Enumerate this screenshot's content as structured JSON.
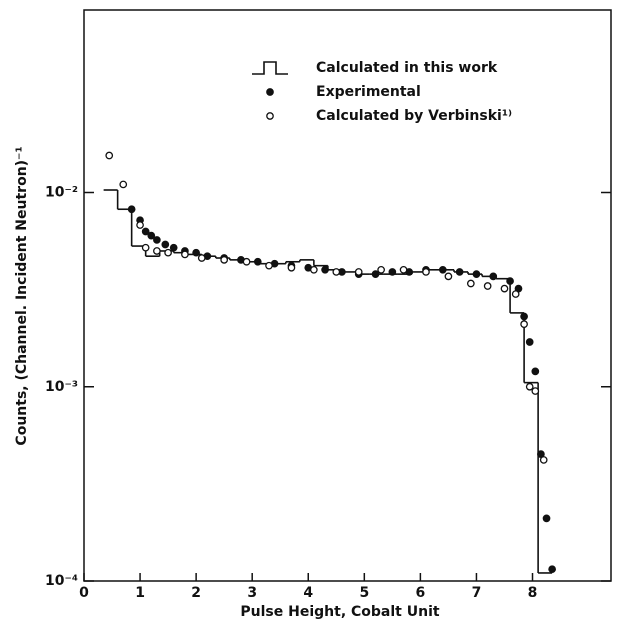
{
  "chart_data": {
    "type": "log-histogram",
    "xlabel": "Pulse Height, Cobalt Unit",
    "ylabel": "Counts, (Channel. Incident Neutron)⁻¹",
    "xlim": [
      0,
      9.4
    ],
    "ylim": [
      0.0001,
      0.087
    ],
    "log_y": true,
    "xticks": [
      0,
      1,
      2,
      3,
      4,
      5,
      6,
      7,
      8
    ],
    "yticks": [
      {
        "value": 0.0001,
        "label": "10⁻⁴"
      },
      {
        "value": 0.001,
        "label": "10⁻³"
      },
      {
        "value": 0.01,
        "label": "10⁻²"
      }
    ],
    "legend": "upper center",
    "series": [
      {
        "name": "Calculated in this work",
        "type": "step",
        "color": "#111",
        "bins": [
          0.35,
          0.6,
          0.85,
          1.1,
          1.35,
          1.6,
          1.85,
          2.1,
          2.35,
          2.6,
          2.85,
          3.1,
          3.35,
          3.6,
          3.85,
          4.1,
          4.35,
          4.6,
          4.85,
          5.1,
          5.35,
          5.6,
          5.85,
          6.1,
          6.35,
          6.6,
          6.85,
          7.1,
          7.35,
          7.6,
          7.85,
          8.1,
          8.35
        ],
        "values": [
          0.0103,
          0.0082,
          0.0053,
          0.0047,
          0.005,
          0.0049,
          0.0048,
          0.0047,
          0.0046,
          0.0045,
          0.0044,
          0.0043,
          0.0043,
          0.0044,
          0.0045,
          0.0042,
          0.004,
          0.0039,
          0.0038,
          0.0038,
          0.0038,
          0.0038,
          0.0039,
          0.004,
          0.004,
          0.0039,
          0.0038,
          0.0037,
          0.0036,
          0.0024,
          0.00105,
          0.00011
        ]
      },
      {
        "name": "Experimental",
        "type": "scatter",
        "marker": "filled",
        "color": "#111",
        "x": [
          0.85,
          1.0,
          1.1,
          1.2,
          1.3,
          1.45,
          1.6,
          1.8,
          2.0,
          2.2,
          2.5,
          2.8,
          3.1,
          3.4,
          3.7,
          4.0,
          4.3,
          4.6,
          4.9,
          5.2,
          5.5,
          5.8,
          6.1,
          6.4,
          6.7,
          7.0,
          7.3,
          7.6,
          7.75,
          7.85,
          7.95,
          8.05,
          8.15,
          8.25,
          8.35
        ],
        "values": [
          0.0082,
          0.0072,
          0.0063,
          0.006,
          0.0057,
          0.0054,
          0.0052,
          0.005,
          0.0049,
          0.0047,
          0.0046,
          0.0045,
          0.0044,
          0.0043,
          0.0042,
          0.0041,
          0.004,
          0.0039,
          0.0038,
          0.0038,
          0.0039,
          0.0039,
          0.004,
          0.004,
          0.0039,
          0.0038,
          0.0037,
          0.0035,
          0.0032,
          0.0023,
          0.0017,
          0.0012,
          0.00045,
          0.00021,
          0.000115
        ]
      },
      {
        "name": "Calculated by Verbinski¹⁾",
        "type": "scatter",
        "marker": "open",
        "color": "#111",
        "x": [
          0.45,
          0.7,
          1.0,
          1.1,
          1.3,
          1.5,
          1.8,
          2.1,
          2.5,
          2.9,
          3.3,
          3.7,
          4.1,
          4.5,
          4.9,
          5.3,
          5.7,
          6.1,
          6.5,
          6.9,
          7.2,
          7.5,
          7.7,
          7.85,
          7.95,
          8.05,
          8.2
        ],
        "values": [
          0.0155,
          0.011,
          0.0068,
          0.0052,
          0.005,
          0.0049,
          0.0048,
          0.0046,
          0.0045,
          0.0044,
          0.0042,
          0.0041,
          0.004,
          0.0039,
          0.0039,
          0.004,
          0.004,
          0.0039,
          0.0037,
          0.0034,
          0.0033,
          0.0032,
          0.003,
          0.0021,
          0.001,
          0.00095,
          0.00042
        ]
      }
    ]
  }
}
